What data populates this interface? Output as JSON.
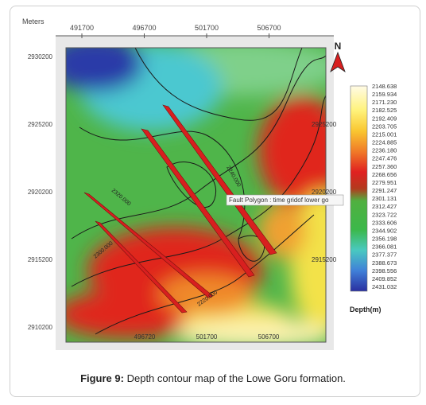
{
  "figure": {
    "axis_unit": "Meters",
    "x_labels": [
      "491700",
      "496700",
      "501700",
      "506700"
    ],
    "y_labels": [
      "2930200",
      "2925200",
      "2920200",
      "2915200",
      "2910200"
    ],
    "bottom_labels": [
      "496720",
      "501700",
      "506700"
    ],
    "north": "N",
    "tooltip": "Fault Polygon : time gridof lower go",
    "colorbar": {
      "labels": [
        "2148.638",
        "2159.934",
        "2171.230",
        "2182.525",
        "2192.409",
        "2203.705",
        "2215.001",
        "2224.885",
        "2236.180",
        "2247.476",
        "2257.360",
        "2268.656",
        "2279.951",
        "2291.247",
        "2301.131",
        "2312.427",
        "2323.722",
        "2333.606",
        "2344.902",
        "2356.198",
        "2366.081",
        "2377.377",
        "2388.673",
        "2398.556",
        "2409.852",
        "2431.032"
      ],
      "title": "Depth(m)"
    },
    "contour_labels": [
      "2240.000",
      "2320.000",
      "2220.000",
      "2300.000"
    ]
  },
  "caption": {
    "label": "Figure 9:",
    "text": "Depth contour map of the Lowe Goru formation."
  }
}
